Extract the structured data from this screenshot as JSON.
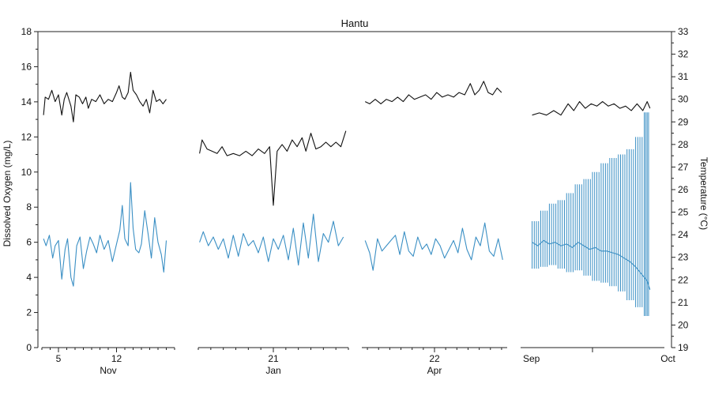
{
  "chart_data": {
    "type": "line",
    "title": "Hantu",
    "ylabel_left": "Dissolved Oxygen (mg/L)",
    "ylabel_right": "Temperature (°C)",
    "ylim_left": [
      0,
      18
    ],
    "ylim_right": [
      19,
      33
    ],
    "yticks_left": [
      "0",
      "2",
      "4",
      "6",
      "8",
      "10",
      "12",
      "14",
      "16",
      "18"
    ],
    "yticks_right": [
      "19",
      "20",
      "21",
      "22",
      "23",
      "24",
      "25",
      "26",
      "27",
      "28",
      "29",
      "30",
      "31",
      "32",
      "33"
    ],
    "colors": {
      "temperature": "#111111",
      "dissolved_oxygen": "#3a8fc4"
    },
    "panels": [
      {
        "month": "Nov",
        "day_range": [
          3,
          19
        ],
        "day_ticks": [
          5,
          12
        ],
        "day_tick_labels": [
          "5",
          "12"
        ],
        "temperature": [
          [
            3.2,
            29.3
          ],
          [
            3.4,
            30.1
          ],
          [
            3.8,
            30.0
          ],
          [
            4.2,
            30.4
          ],
          [
            4.6,
            29.9
          ],
          [
            5.0,
            30.2
          ],
          [
            5.4,
            29.3
          ],
          [
            5.7,
            30.0
          ],
          [
            6.0,
            30.3
          ],
          [
            6.5,
            29.7
          ],
          [
            6.8,
            29.0
          ],
          [
            7.1,
            30.2
          ],
          [
            7.5,
            30.1
          ],
          [
            7.9,
            29.8
          ],
          [
            8.3,
            30.1
          ],
          [
            8.6,
            29.6
          ],
          [
            9.0,
            30.0
          ],
          [
            9.5,
            29.9
          ],
          [
            10.0,
            30.2
          ],
          [
            10.5,
            29.8
          ],
          [
            11.0,
            30.0
          ],
          [
            11.5,
            29.9
          ],
          [
            12.0,
            30.3
          ],
          [
            12.3,
            30.6
          ],
          [
            12.7,
            30.1
          ],
          [
            13.0,
            30.0
          ],
          [
            13.4,
            30.3
          ],
          [
            13.7,
            31.2
          ],
          [
            14.0,
            30.4
          ],
          [
            14.4,
            30.2
          ],
          [
            14.8,
            29.9
          ],
          [
            15.2,
            29.7
          ],
          [
            15.6,
            30.0
          ],
          [
            16.0,
            29.4
          ],
          [
            16.4,
            30.4
          ],
          [
            16.8,
            29.9
          ],
          [
            17.2,
            30.0
          ],
          [
            17.6,
            29.8
          ],
          [
            18.0,
            30.0
          ]
        ],
        "dissolved_oxygen": [
          [
            3.2,
            6.2
          ],
          [
            3.5,
            5.8
          ],
          [
            3.9,
            6.4
          ],
          [
            4.3,
            5.1
          ],
          [
            4.6,
            5.8
          ],
          [
            5.0,
            6.1
          ],
          [
            5.4,
            3.9
          ],
          [
            5.8,
            5.6
          ],
          [
            6.1,
            6.2
          ],
          [
            6.5,
            4.0
          ],
          [
            6.8,
            3.5
          ],
          [
            7.2,
            5.8
          ],
          [
            7.6,
            6.3
          ],
          [
            8.0,
            4.5
          ],
          [
            8.4,
            5.5
          ],
          [
            8.8,
            6.3
          ],
          [
            9.2,
            5.9
          ],
          [
            9.6,
            5.4
          ],
          [
            10.0,
            6.4
          ],
          [
            10.5,
            5.6
          ],
          [
            11.0,
            6.1
          ],
          [
            11.5,
            4.9
          ],
          [
            12.0,
            5.9
          ],
          [
            12.4,
            6.7
          ],
          [
            12.7,
            8.1
          ],
          [
            13.0,
            6.2
          ],
          [
            13.4,
            5.8
          ],
          [
            13.7,
            9.4
          ],
          [
            14.0,
            6.8
          ],
          [
            14.3,
            5.6
          ],
          [
            14.7,
            5.4
          ],
          [
            15.0,
            5.9
          ],
          [
            15.4,
            7.8
          ],
          [
            15.8,
            6.5
          ],
          [
            16.2,
            5.1
          ],
          [
            16.6,
            7.4
          ],
          [
            17.0,
            6.0
          ],
          [
            17.4,
            5.3
          ],
          [
            17.7,
            4.3
          ],
          [
            18.0,
            6.1
          ]
        ]
      },
      {
        "month": "Jan",
        "day_range": [
          15,
          27
        ],
        "day_ticks": [
          21
        ],
        "day_tick_labels": [
          "21"
        ],
        "temperature": [
          [
            15.1,
            27.6
          ],
          [
            15.3,
            28.2
          ],
          [
            15.7,
            27.8
          ],
          [
            16.1,
            27.7
          ],
          [
            16.5,
            27.6
          ],
          [
            16.9,
            27.9
          ],
          [
            17.3,
            27.5
          ],
          [
            17.8,
            27.6
          ],
          [
            18.3,
            27.5
          ],
          [
            18.8,
            27.7
          ],
          [
            19.3,
            27.5
          ],
          [
            19.8,
            27.8
          ],
          [
            20.3,
            27.6
          ],
          [
            20.7,
            27.9
          ],
          [
            21.0,
            25.3
          ],
          [
            21.3,
            27.7
          ],
          [
            21.7,
            28.0
          ],
          [
            22.1,
            27.7
          ],
          [
            22.5,
            28.2
          ],
          [
            22.9,
            27.9
          ],
          [
            23.3,
            28.3
          ],
          [
            23.6,
            27.7
          ],
          [
            24.0,
            28.5
          ],
          [
            24.4,
            27.8
          ],
          [
            24.8,
            27.9
          ],
          [
            25.2,
            28.1
          ],
          [
            25.6,
            27.9
          ],
          [
            26.0,
            28.1
          ],
          [
            26.4,
            27.9
          ],
          [
            26.8,
            28.6
          ]
        ],
        "dissolved_oxygen": [
          [
            15.1,
            6.0
          ],
          [
            15.4,
            6.6
          ],
          [
            15.8,
            5.8
          ],
          [
            16.2,
            6.3
          ],
          [
            16.6,
            5.6
          ],
          [
            17.0,
            6.2
          ],
          [
            17.4,
            5.1
          ],
          [
            17.8,
            6.4
          ],
          [
            18.2,
            5.2
          ],
          [
            18.6,
            6.5
          ],
          [
            19.0,
            5.8
          ],
          [
            19.4,
            6.1
          ],
          [
            19.8,
            5.4
          ],
          [
            20.2,
            6.3
          ],
          [
            20.6,
            4.9
          ],
          [
            21.0,
            6.2
          ],
          [
            21.4,
            5.6
          ],
          [
            21.8,
            6.4
          ],
          [
            22.2,
            5.0
          ],
          [
            22.6,
            6.8
          ],
          [
            23.0,
            4.7
          ],
          [
            23.4,
            7.1
          ],
          [
            23.8,
            5.1
          ],
          [
            24.2,
            7.6
          ],
          [
            24.6,
            4.9
          ],
          [
            25.0,
            6.5
          ],
          [
            25.4,
            6.0
          ],
          [
            25.8,
            7.2
          ],
          [
            26.2,
            5.8
          ],
          [
            26.6,
            6.3
          ]
        ]
      },
      {
        "month": "Apr",
        "day_range": [
          15.5,
          28.5
        ],
        "day_ticks": [
          22
        ],
        "day_tick_labels": [
          "22"
        ],
        "temperature": [
          [
            15.8,
            29.9
          ],
          [
            16.2,
            29.8
          ],
          [
            16.7,
            30.0
          ],
          [
            17.2,
            29.8
          ],
          [
            17.7,
            30.0
          ],
          [
            18.2,
            29.9
          ],
          [
            18.7,
            30.1
          ],
          [
            19.2,
            29.9
          ],
          [
            19.7,
            30.2
          ],
          [
            20.2,
            30.0
          ],
          [
            20.7,
            30.1
          ],
          [
            21.2,
            30.2
          ],
          [
            21.7,
            30.0
          ],
          [
            22.2,
            30.3
          ],
          [
            22.7,
            30.1
          ],
          [
            23.2,
            30.2
          ],
          [
            23.7,
            30.1
          ],
          [
            24.2,
            30.3
          ],
          [
            24.7,
            30.2
          ],
          [
            25.2,
            30.7
          ],
          [
            25.6,
            30.2
          ],
          [
            26.0,
            30.4
          ],
          [
            26.4,
            30.8
          ],
          [
            26.8,
            30.3
          ],
          [
            27.2,
            30.2
          ],
          [
            27.6,
            30.5
          ],
          [
            28.0,
            30.3
          ]
        ],
        "dissolved_oxygen": [
          [
            15.8,
            6.1
          ],
          [
            16.2,
            5.4
          ],
          [
            16.5,
            4.4
          ],
          [
            16.9,
            6.2
          ],
          [
            17.3,
            5.5
          ],
          [
            17.7,
            5.8
          ],
          [
            18.1,
            6.1
          ],
          [
            18.5,
            6.4
          ],
          [
            18.9,
            5.3
          ],
          [
            19.3,
            6.6
          ],
          [
            19.7,
            5.5
          ],
          [
            20.1,
            5.2
          ],
          [
            20.5,
            6.3
          ],
          [
            20.9,
            5.6
          ],
          [
            21.3,
            5.9
          ],
          [
            21.7,
            5.3
          ],
          [
            22.1,
            6.2
          ],
          [
            22.5,
            5.8
          ],
          [
            22.9,
            5.1
          ],
          [
            23.3,
            5.6
          ],
          [
            23.7,
            6.1
          ],
          [
            24.1,
            5.4
          ],
          [
            24.5,
            6.8
          ],
          [
            24.9,
            5.6
          ],
          [
            25.3,
            5.0
          ],
          [
            25.7,
            6.3
          ],
          [
            26.1,
            5.8
          ],
          [
            26.5,
            7.1
          ],
          [
            26.9,
            5.5
          ],
          [
            27.3,
            5.2
          ],
          [
            27.7,
            6.2
          ],
          [
            28.1,
            5.0
          ]
        ]
      },
      {
        "month_labels": [
          "Sep",
          "Oct"
        ],
        "day_range": [
          0,
          1
        ],
        "month_ticks": [
          0.5
        ],
        "temperature": [
          [
            0.08,
            29.3
          ],
          [
            0.13,
            29.4
          ],
          [
            0.18,
            29.3
          ],
          [
            0.23,
            29.5
          ],
          [
            0.28,
            29.3
          ],
          [
            0.33,
            29.8
          ],
          [
            0.37,
            29.5
          ],
          [
            0.41,
            29.9
          ],
          [
            0.45,
            29.6
          ],
          [
            0.49,
            29.8
          ],
          [
            0.53,
            29.7
          ],
          [
            0.57,
            29.9
          ],
          [
            0.61,
            29.7
          ],
          [
            0.65,
            29.8
          ],
          [
            0.69,
            29.6
          ],
          [
            0.73,
            29.7
          ],
          [
            0.77,
            29.5
          ],
          [
            0.81,
            29.8
          ],
          [
            0.85,
            29.5
          ],
          [
            0.88,
            29.9
          ],
          [
            0.9,
            29.6
          ]
        ],
        "dissolved_oxygen": [
          [
            0.08,
            6.0
          ],
          [
            0.12,
            5.8
          ],
          [
            0.16,
            6.1
          ],
          [
            0.2,
            5.9
          ],
          [
            0.24,
            6.0
          ],
          [
            0.28,
            5.8
          ],
          [
            0.32,
            5.9
          ],
          [
            0.36,
            5.7
          ],
          [
            0.4,
            6.0
          ],
          [
            0.44,
            5.8
          ],
          [
            0.48,
            5.6
          ],
          [
            0.52,
            5.7
          ],
          [
            0.56,
            5.5
          ],
          [
            0.6,
            5.5
          ],
          [
            0.64,
            5.4
          ],
          [
            0.68,
            5.3
          ],
          [
            0.72,
            5.1
          ],
          [
            0.76,
            4.9
          ],
          [
            0.8,
            4.6
          ],
          [
            0.84,
            4.2
          ],
          [
            0.88,
            3.8
          ],
          [
            0.9,
            3.3
          ]
        ],
        "dissolved_oxygen_daily_range": [
          [
            0.08,
            4.5,
            7.2
          ],
          [
            0.14,
            4.6,
            7.8
          ],
          [
            0.2,
            4.7,
            8.2
          ],
          [
            0.26,
            4.5,
            8.4
          ],
          [
            0.32,
            4.3,
            8.8
          ],
          [
            0.38,
            4.4,
            9.3
          ],
          [
            0.44,
            4.1,
            9.6
          ],
          [
            0.5,
            3.8,
            10.0
          ],
          [
            0.56,
            3.7,
            10.5
          ],
          [
            0.62,
            3.5,
            10.8
          ],
          [
            0.68,
            3.2,
            11.0
          ],
          [
            0.74,
            2.7,
            11.3
          ],
          [
            0.8,
            2.3,
            12.0
          ],
          [
            0.86,
            1.8,
            13.4
          ],
          [
            0.9,
            1.4,
            15.0
          ]
        ]
      }
    ]
  }
}
